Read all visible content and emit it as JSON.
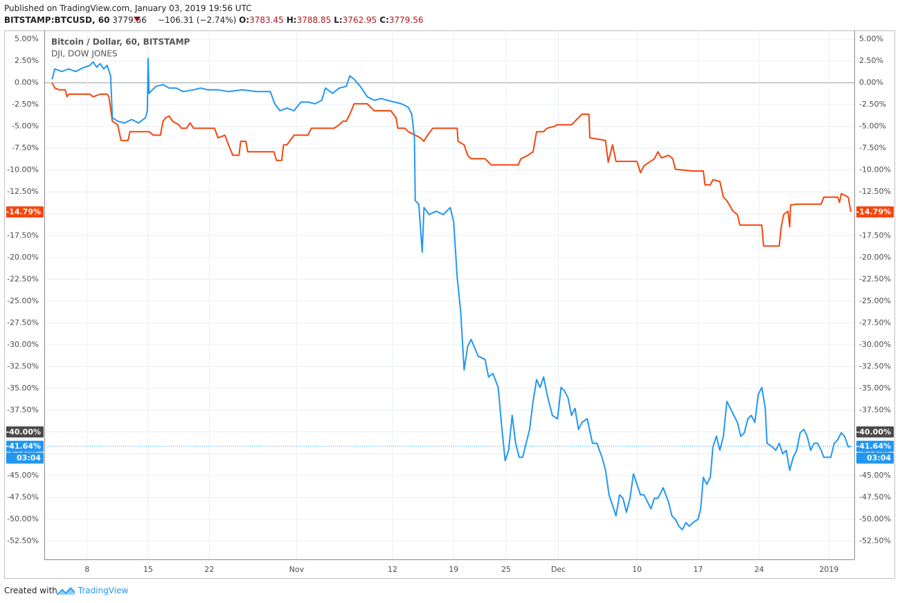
{
  "header": {
    "published": "Published on TradingView.com, January 03, 2019 19:56 UTC",
    "symbol": "BITSTAMP:BTCUSD, 60",
    "price": "3779.56",
    "change": "−106.31 (−2.74%)",
    "ohlc": [
      {
        "key": "O:",
        "value": "3783.45"
      },
      {
        "key": "H:",
        "value": "3788.85"
      },
      {
        "key": "L:",
        "value": "3762.95"
      },
      {
        "key": "C:",
        "value": "3779.56"
      }
    ]
  },
  "footer": {
    "created_with": "Created with",
    "brand": "TradingView"
  },
  "chart_data": {
    "type": "line",
    "grid": true,
    "xlim": [
      3.1,
      95.9
    ],
    "ylim": [
      -54.6,
      6.0
    ],
    "xticks": [
      8,
      15,
      22,
      {
        "value": 32,
        "label": "Nov"
      },
      {
        "value": 43,
        "label": "12"
      },
      {
        "value": 50,
        "label": "19"
      },
      {
        "value": 56,
        "label": "25"
      },
      {
        "value": 62,
        "label": "Dec"
      },
      {
        "value": 71,
        "label": "10"
      },
      {
        "value": 78,
        "label": "17"
      },
      {
        "value": 85,
        "label": "24"
      },
      {
        "value": 93,
        "label": "2019"
      }
    ],
    "yticks": [
      {
        "value": 5,
        "label": "5.00%"
      },
      {
        "value": 2.5,
        "label": "2.50%"
      },
      {
        "value": 0,
        "label": "0.00%"
      },
      {
        "value": -2.5,
        "label": "-2.50%"
      },
      {
        "value": -5,
        "label": "-5.00%"
      },
      {
        "value": -7.5,
        "label": "-7.50%"
      },
      {
        "value": -10,
        "label": "-10.00%"
      },
      {
        "value": -12.5,
        "label": "-12.50%"
      },
      {
        "value": -15,
        "label": "-15.00%"
      },
      {
        "value": -17.5,
        "label": "-17.50%"
      },
      {
        "value": -20,
        "label": "-20.00%"
      },
      {
        "value": -22.5,
        "label": "-22.50%"
      },
      {
        "value": -25,
        "label": "-25.00%"
      },
      {
        "value": -27.5,
        "label": "-27.50%"
      },
      {
        "value": -30,
        "label": "-30.00%"
      },
      {
        "value": -32.5,
        "label": "-32.50%"
      },
      {
        "value": -35,
        "label": "-35.00%"
      },
      {
        "value": -37.5,
        "label": "-37.50%"
      },
      {
        "value": -40,
        "label": "-40.00%"
      },
      {
        "value": -42.5,
        "label": "-42.50%"
      },
      {
        "value": -45,
        "label": "-45.00%"
      },
      {
        "value": -47.5,
        "label": "-47.50%"
      },
      {
        "value": -50,
        "label": "-50.00%"
      },
      {
        "value": -52.5,
        "label": "-52.50%"
      }
    ],
    "crosshair": {
      "value": -40,
      "label": "-40.00%"
    },
    "series": [
      {
        "name": "Bitcoin / Dollar, 60, BITSTAMP",
        "color": "#2196f3",
        "last_label": "-41.64%",
        "countdown": "03:04",
        "x": [
          4.0,
          4.3,
          5.1,
          5.9,
          6.7,
          7.5,
          8.3,
          8.7,
          9.1,
          9.5,
          9.9,
          10.3,
          10.7,
          10.9,
          11.5,
          12.3,
          13.1,
          13.9,
          14.7,
          14.9,
          15.0,
          15.1,
          15.5,
          15.9,
          16.7,
          17.4,
          18.2,
          19.0,
          20.2,
          21.0,
          21.8,
          23.0,
          24.2,
          25.8,
          27.4,
          29.0,
          29.5,
          30.1,
          30.9,
          31.7,
          32.5,
          33.3,
          34.1,
          34.9,
          35.3,
          36.1,
          36.9,
          37.7,
          38.1,
          38.6,
          39.3,
          40.1,
          40.9,
          41.7,
          42.4,
          43.2,
          44.0,
          44.8,
          45.2,
          45.5,
          45.6,
          46.0,
          46.4,
          46.6,
          47.2,
          48.0,
          48.8,
          49.6,
          50.0,
          50.4,
          50.8,
          51.2,
          51.6,
          52.0,
          52.8,
          53.6,
          54.0,
          54.5,
          55.1,
          55.5,
          55.9,
          56.3,
          56.7,
          57.1,
          57.5,
          57.9,
          58.7,
          59.1,
          59.5,
          59.9,
          60.3,
          60.7,
          61.3,
          61.9,
          62.3,
          62.7,
          63.1,
          63.5,
          63.9,
          64.3,
          64.7,
          65.3,
          65.9,
          66.4,
          67.0,
          67.4,
          67.8,
          68.2,
          68.6,
          69.0,
          69.4,
          69.8,
          70.2,
          70.6,
          71.0,
          71.4,
          71.8,
          72.2,
          72.6,
          73.0,
          73.4,
          74.0,
          74.6,
          75.0,
          75.4,
          75.8,
          76.2,
          76.6,
          77.0,
          77.4,
          78.0,
          78.3,
          78.6,
          79.0,
          79.4,
          79.7,
          80.1,
          80.5,
          80.9,
          81.3,
          81.7,
          82.1,
          82.5,
          82.9,
          83.3,
          83.7,
          84.1,
          84.5,
          84.9,
          85.3,
          85.7,
          85.9,
          86.5,
          86.9,
          87.3,
          87.7,
          88.1,
          88.5,
          88.9,
          89.3,
          89.7,
          90.1,
          90.5,
          90.9,
          91.3,
          91.7,
          92.1,
          92.4,
          92.8,
          93.2,
          93.6,
          94.0,
          94.4,
          94.8,
          95.2,
          95.5
        ],
        "values": [
          0.4,
          1.6,
          1.3,
          1.6,
          1.3,
          1.7,
          2.0,
          2.4,
          1.8,
          2.2,
          1.6,
          2.0,
          0.8,
          -4.0,
          -4.4,
          -4.6,
          -4.2,
          -4.6,
          -4.0,
          -3.2,
          2.8,
          -1.2,
          -0.8,
          -0.4,
          -0.2,
          -0.6,
          -0.6,
          -1.0,
          -0.8,
          -0.6,
          -0.8,
          -0.8,
          -1.0,
          -0.8,
          -1.0,
          -1.0,
          -2.4,
          -3.2,
          -2.9,
          -3.2,
          -2.2,
          -2.2,
          -2.4,
          -2.0,
          -0.6,
          -1.2,
          -0.6,
          -0.4,
          0.8,
          0.4,
          -0.4,
          -1.6,
          -2.0,
          -1.8,
          -2.0,
          -2.2,
          -2.4,
          -2.8,
          -3.6,
          -6.3,
          -13.5,
          -13.9,
          -19.4,
          -14.3,
          -15.1,
          -14.7,
          -15.1,
          -14.3,
          -15.9,
          -22.2,
          -26.2,
          -32.9,
          -30.2,
          -29.4,
          -31.3,
          -31.7,
          -33.7,
          -33.3,
          -34.9,
          -39.3,
          -43.3,
          -42.1,
          -38.1,
          -41.3,
          -42.9,
          -42.9,
          -39.7,
          -36.5,
          -34.0,
          -34.9,
          -33.7,
          -35.7,
          -38.1,
          -38.5,
          -34.9,
          -35.3,
          -36.1,
          -38.1,
          -37.3,
          -39.7,
          -38.9,
          -38.5,
          -41.3,
          -41.3,
          -42.9,
          -44.4,
          -47.2,
          -48.4,
          -49.6,
          -47.2,
          -47.6,
          -49.2,
          -47.6,
          -44.8,
          -46.0,
          -47.2,
          -47.2,
          -48.0,
          -48.8,
          -47.6,
          -47.6,
          -46.4,
          -48.0,
          -49.6,
          -50.0,
          -50.8,
          -51.2,
          -50.4,
          -50.8,
          -50.4,
          -50.0,
          -48.8,
          -45.2,
          -46.0,
          -45.2,
          -41.7,
          -40.5,
          -42.1,
          -40.5,
          -36.5,
          -37.3,
          -38.1,
          -38.9,
          -40.5,
          -40.1,
          -38.5,
          -38.1,
          -38.9,
          -35.7,
          -34.9,
          -37.3,
          -41.3,
          -41.7,
          -42.1,
          -41.3,
          -42.5,
          -42.1,
          -44.4,
          -42.9,
          -42.1,
          -40.1,
          -39.7,
          -40.5,
          -42.1,
          -41.3,
          -41.3,
          -42.1,
          -42.9,
          -42.9,
          -42.9,
          -41.3,
          -40.9,
          -40.1,
          -40.5,
          -41.7,
          -41.64
        ]
      },
      {
        "name": "DJI, DOW JONES",
        "color": "#f4450d",
        "last_label": "-14.79%",
        "x": [
          4.0,
          4.3,
          4.8,
          5.5,
          5.7,
          5.9,
          8.3,
          8.7,
          9.5,
          10.3,
          10.5,
          10.9,
          11.5,
          11.9,
          12.7,
          12.9,
          13.9,
          15.1,
          15.6,
          16.4,
          16.7,
          17.0,
          17.4,
          17.8,
          18.5,
          18.8,
          19.4,
          19.8,
          20.2,
          21.8,
          22.6,
          23.0,
          23.8,
          24.2,
          24.7,
          25.4,
          25.6,
          26.2,
          26.4,
          27.0,
          27.5,
          29.4,
          29.7,
          30.3,
          30.5,
          30.9,
          31.2,
          31.7,
          32.5,
          33.3,
          33.7,
          34.5,
          35.3,
          36.3,
          36.9,
          37.3,
          37.7,
          38.1,
          38.6,
          40.1,
          40.5,
          40.9,
          41.3,
          42.8,
          43.4,
          43.6,
          44.4,
          44.8,
          45.6,
          46.2,
          46.6,
          46.8,
          47.6,
          48.8,
          50.4,
          50.5,
          51.2,
          51.6,
          52.0,
          53.6,
          54.3,
          55.1,
          57.4,
          57.7,
          58.5,
          59.1,
          59.5,
          60.3,
          60.7,
          61.5,
          61.9,
          63.5,
          64.3,
          64.7,
          65.5,
          65.6,
          67.4,
          67.7,
          68.2,
          68.6,
          71.0,
          71.4,
          71.8,
          72.4,
          73.0,
          73.4,
          73.8,
          74.6,
          75.1,
          75.4,
          77.4,
          78.6,
          78.8,
          79.4,
          79.7,
          80.5,
          80.9,
          81.3,
          82.0,
          82.5,
          82.8,
          85.3,
          85.5,
          87.3,
          87.5,
          87.8,
          88.3,
          88.5,
          88.6,
          89.3,
          90.1,
          92.1,
          92.4,
          94.0,
          94.2,
          94.4,
          95.2,
          95.5
        ],
        "values": [
          0,
          -0.6,
          -0.8,
          -0.8,
          -1.6,
          -1.3,
          -1.3,
          -1.6,
          -1.3,
          -1.3,
          -1.6,
          -4.4,
          -4.8,
          -6.6,
          -6.6,
          -5.6,
          -5.6,
          -5.6,
          -6.0,
          -6.0,
          -4.4,
          -4.0,
          -3.8,
          -4.4,
          -4.8,
          -5.2,
          -5.2,
          -4.6,
          -5.2,
          -5.2,
          -5.2,
          -6.3,
          -6.0,
          -7.1,
          -8.3,
          -8.3,
          -6.7,
          -6.7,
          -7.9,
          -7.9,
          -7.9,
          -7.9,
          -8.9,
          -8.9,
          -7.1,
          -7.1,
          -6.7,
          -6.0,
          -6.0,
          -6.0,
          -5.2,
          -5.2,
          -5.2,
          -5.2,
          -4.8,
          -4.4,
          -4.4,
          -3.6,
          -2.4,
          -2.4,
          -2.8,
          -3.2,
          -3.2,
          -3.2,
          -4.0,
          -5.2,
          -5.2,
          -5.6,
          -6.0,
          -6.3,
          -6.7,
          -6.3,
          -5.2,
          -5.2,
          -5.2,
          -6.7,
          -7.1,
          -8.3,
          -8.7,
          -8.7,
          -9.4,
          -9.4,
          -9.4,
          -8.7,
          -8.3,
          -7.9,
          -5.6,
          -5.6,
          -5.2,
          -5.0,
          -4.8,
          -4.8,
          -4.0,
          -3.6,
          -3.6,
          -6.3,
          -6.6,
          -9.1,
          -7.1,
          -9.0,
          -9.0,
          -10.3,
          -9.5,
          -9.1,
          -8.7,
          -7.9,
          -8.6,
          -8.3,
          -8.7,
          -9.9,
          -10.1,
          -10.1,
          -11.7,
          -11.7,
          -11.1,
          -11.3,
          -13.1,
          -13.5,
          -14.7,
          -15.1,
          -16.3,
          -16.3,
          -18.7,
          -18.7,
          -16.7,
          -15.1,
          -14.7,
          -16.5,
          -14.0,
          -13.9,
          -13.9,
          -13.9,
          -13.1,
          -13.1,
          -13.7,
          -12.7,
          -13.1,
          -14.79
        ]
      }
    ]
  }
}
